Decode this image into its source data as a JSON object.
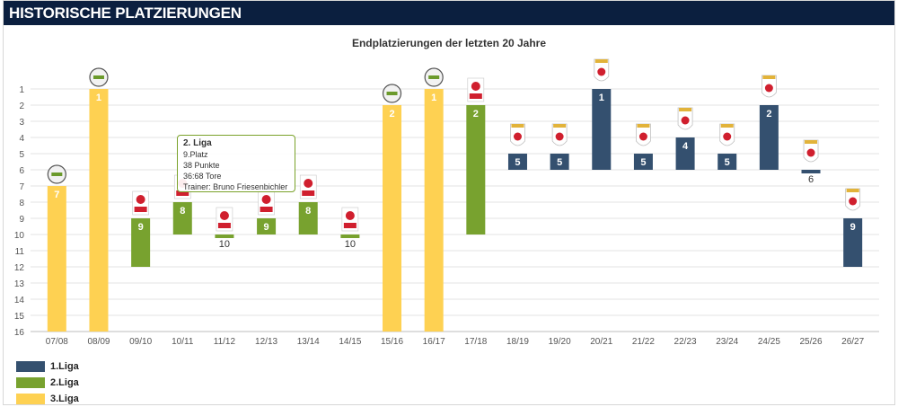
{
  "header": {
    "title": "HISTORISCHE PLATZIERUNGEN"
  },
  "chart_data": {
    "type": "bar",
    "title": "Endplatzierungen der letzten 20 Jahre",
    "y_axis": {
      "min": 1,
      "max": 16,
      "reversed": true,
      "ticks": [
        1,
        2,
        3,
        4,
        5,
        6,
        7,
        8,
        9,
        10,
        11,
        12,
        13,
        14,
        15,
        16
      ]
    },
    "grid": true,
    "categories": [
      "07/08",
      "08/09",
      "09/10",
      "10/11",
      "11/12",
      "12/13",
      "13/14",
      "14/15",
      "15/16",
      "16/17",
      "17/18",
      "18/19",
      "19/20",
      "20/21",
      "21/22",
      "22/23",
      "23/24",
      "24/25",
      "25/26",
      "26/27"
    ],
    "series": [
      {
        "name": "1.Liga",
        "color": "#34506f"
      },
      {
        "name": "2.Liga",
        "color": "#78a22f"
      },
      {
        "name": "3.Liga",
        "color": "#fed152"
      }
    ],
    "points": [
      {
        "season": "07/08",
        "league": "3.Liga",
        "place": 7,
        "league_size": 16
      },
      {
        "season": "08/09",
        "league": "3.Liga",
        "place": 1,
        "league_size": 16
      },
      {
        "season": "09/10",
        "league": "2.Liga",
        "place": 9,
        "league_size": 12
      },
      {
        "season": "10/11",
        "league": "2.Liga",
        "place": 8,
        "league_size": 10
      },
      {
        "season": "11/12",
        "league": "2.Liga",
        "place": 10,
        "league_size": 10
      },
      {
        "season": "12/13",
        "league": "2.Liga",
        "place": 9,
        "league_size": 10
      },
      {
        "season": "13/14",
        "league": "2.Liga",
        "place": 8,
        "league_size": 10
      },
      {
        "season": "14/15",
        "league": "2.Liga",
        "place": 10,
        "league_size": 10
      },
      {
        "season": "15/16",
        "league": "3.Liga",
        "place": 2,
        "league_size": 16
      },
      {
        "season": "16/17",
        "league": "3.Liga",
        "place": 1,
        "league_size": 16
      },
      {
        "season": "17/18",
        "league": "2.Liga",
        "place": 2,
        "league_size": 10
      },
      {
        "season": "18/19",
        "league": "1.Liga",
        "place": 5,
        "league_size": 6
      },
      {
        "season": "19/20",
        "league": "1.Liga",
        "place": 5,
        "league_size": 6
      },
      {
        "season": "20/21",
        "league": "1.Liga",
        "place": 1,
        "league_size": 6
      },
      {
        "season": "21/22",
        "league": "1.Liga",
        "place": 5,
        "league_size": 6
      },
      {
        "season": "22/23",
        "league": "1.Liga",
        "place": 4,
        "league_size": 6
      },
      {
        "season": "23/24",
        "league": "1.Liga",
        "place": 5,
        "league_size": 6
      },
      {
        "season": "24/25",
        "league": "1.Liga",
        "place": 2,
        "league_size": 6
      },
      {
        "season": "25/26",
        "league": "1.Liga",
        "place": 6,
        "league_size": 6
      },
      {
        "season": "26/27",
        "league": "1.Liga",
        "place": 9,
        "league_size": 12
      }
    ],
    "legend_position": "bottom-left"
  },
  "tooltip": {
    "title": "2. Liga",
    "line1": "9.Platz",
    "line2": "38 Punkte",
    "line3": "36:68 Tore",
    "line4": "Trainer: Bruno Friesenbichler"
  }
}
